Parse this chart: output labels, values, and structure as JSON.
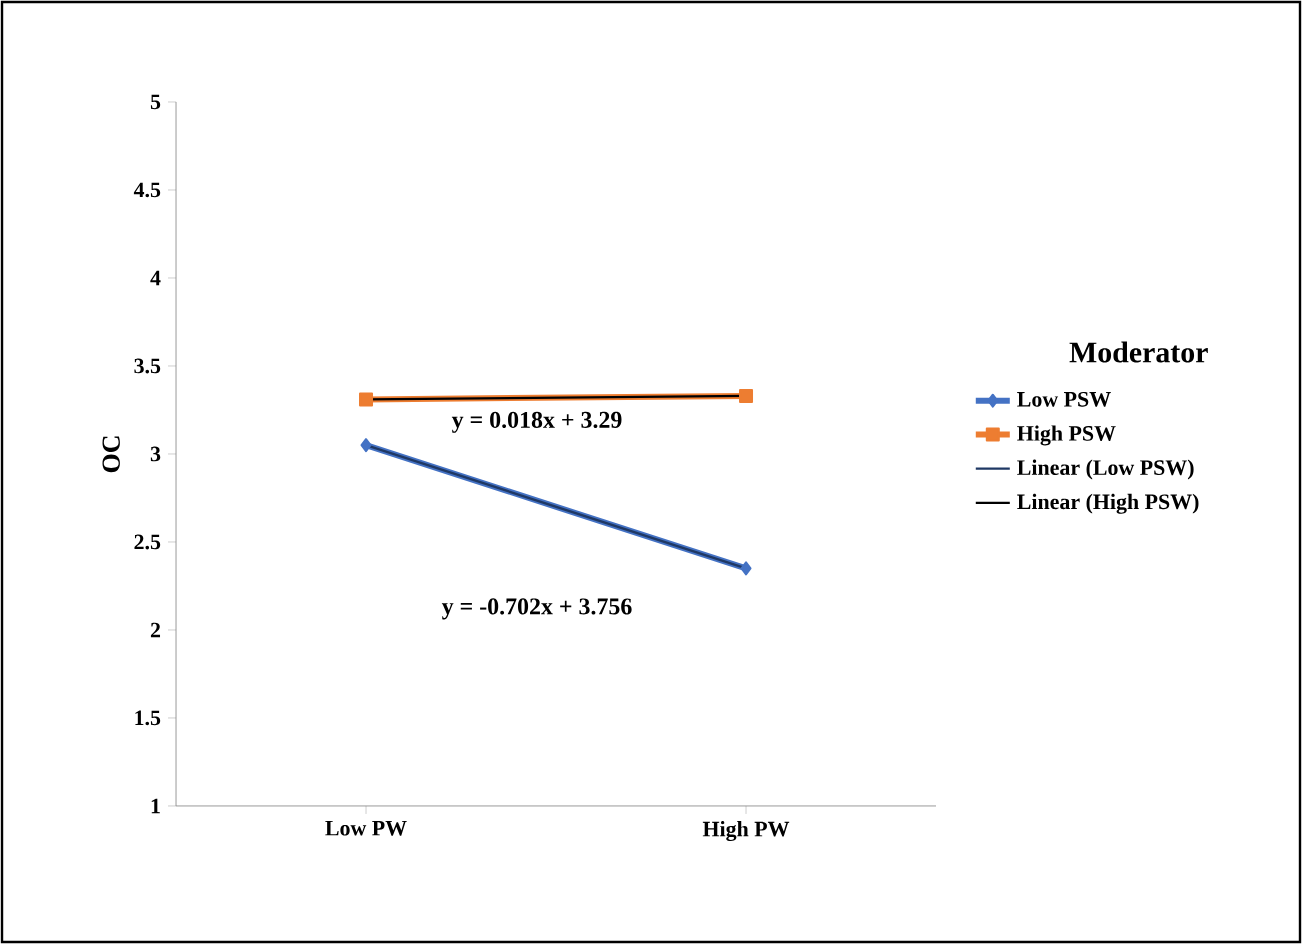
{
  "chart_data": {
    "type": "line",
    "ylabel": "OC",
    "legend_title": "Moderator",
    "legend": "right",
    "grid": false,
    "categories": [
      "Low PW",
      "High PW"
    ],
    "series": [
      {
        "name": "Low PSW",
        "color": "#4472c4",
        "marker": "diamond",
        "values": [
          3.05,
          2.35
        ]
      },
      {
        "name": "High PSW",
        "color": "#ed7d31",
        "marker": "square",
        "values": [
          3.31,
          3.33
        ]
      },
      {
        "name": "Linear (Low PSW)",
        "color": "#1f3864",
        "marker": "none",
        "values": [
          3.05,
          2.35
        ]
      },
      {
        "name": "Linear (High PSW)",
        "color": "#000000",
        "marker": "none",
        "values": [
          3.31,
          3.33
        ]
      }
    ],
    "annotations": [
      "y = 0.018x + 3.29",
      "y = -0.702x + 3.756"
    ],
    "ylim": [
      1,
      5
    ],
    "yticks": [
      1,
      1.5,
      2,
      2.5,
      3,
      3.5,
      4,
      4.5,
      5
    ]
  }
}
